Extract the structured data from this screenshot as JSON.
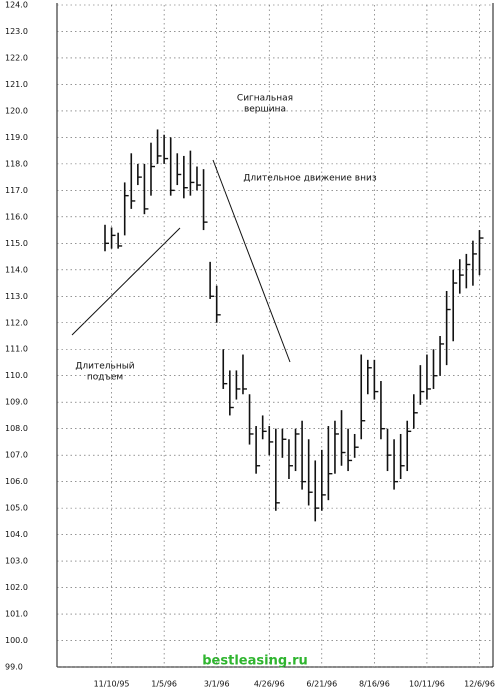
{
  "chart_data": {
    "type": "hlc",
    "color": "#111111",
    "grid": true,
    "ylim": [
      99,
      124
    ],
    "yticks": [
      {
        "value": 99,
        "label": "99.0"
      },
      {
        "value": 100,
        "label": "100.0"
      },
      {
        "value": 101,
        "label": "101.0"
      },
      {
        "value": 102,
        "label": "102.0"
      },
      {
        "value": 103,
        "label": "103.0"
      },
      {
        "value": 104,
        "label": "104.0"
      },
      {
        "value": 105,
        "label": "105.0"
      },
      {
        "value": 106,
        "label": "106.0"
      },
      {
        "value": 107,
        "label": "107.0"
      },
      {
        "value": 108,
        "label": "108.0"
      },
      {
        "value": 109,
        "label": "109.0"
      },
      {
        "value": 110,
        "label": "110.0"
      },
      {
        "value": 111,
        "label": "111.0"
      },
      {
        "value": 112,
        "label": "112.0"
      },
      {
        "value": 113,
        "label": "113.0"
      },
      {
        "value": 114,
        "label": "114.0"
      },
      {
        "value": 115,
        "label": "115.0"
      },
      {
        "value": 116,
        "label": "116.0"
      },
      {
        "value": 117,
        "label": "117.0"
      },
      {
        "value": 118,
        "label": "118.0"
      },
      {
        "value": 119,
        "label": "119.0"
      },
      {
        "value": 120,
        "label": "120.0"
      },
      {
        "value": 121,
        "label": "121.0"
      },
      {
        "value": 122,
        "label": "122.0"
      },
      {
        "value": 123,
        "label": "123.0"
      },
      {
        "value": 124,
        "label": "124.0"
      }
    ],
    "categories": [
      null,
      "11/10/95",
      null,
      null,
      null,
      null,
      null,
      null,
      null,
      "1/5/96",
      null,
      null,
      null,
      null,
      null,
      null,
      null,
      "3/1/96",
      null,
      null,
      null,
      null,
      null,
      null,
      null,
      "4/26/96",
      null,
      null,
      null,
      null,
      null,
      null,
      null,
      "6/21/96",
      null,
      null,
      null,
      null,
      null,
      null,
      null,
      "8/16/96",
      null,
      null,
      null,
      null,
      null,
      null,
      null,
      "10/11/96",
      null,
      null,
      null,
      null,
      null,
      null,
      null,
      "12/6/96"
    ],
    "high": [
      115.7,
      115.6,
      115.4,
      117.3,
      118.4,
      118.0,
      118.0,
      118.8,
      119.3,
      119.1,
      119.0,
      118.4,
      118.3,
      118.5,
      117.9,
      117.8,
      114.3,
      113.4,
      111.0,
      110.2,
      110.2,
      110.8,
      109.3,
      108.1,
      108.5,
      108.1,
      108.0,
      108.0,
      107.6,
      108.0,
      108.3,
      107.6,
      106.8,
      107.2,
      108.1,
      108.3,
      108.7,
      108.0,
      107.8,
      110.8,
      110.6,
      110.6,
      109.8,
      108.0,
      107.6,
      107.8,
      108.3,
      109.3,
      110.4,
      110.8,
      111.0,
      111.5,
      113.2,
      114.0,
      114.4,
      114.6,
      115.1,
      115.5
    ],
    "low": [
      114.7,
      114.8,
      114.8,
      115.3,
      116.3,
      117.2,
      116.1,
      116.8,
      118.0,
      118.0,
      116.8,
      117.2,
      116.7,
      116.8,
      117.0,
      115.5,
      112.9,
      112.0,
      109.5,
      108.5,
      109.1,
      109.3,
      107.4,
      106.3,
      107.6,
      107.0,
      104.9,
      106.9,
      106.1,
      106.4,
      105.7,
      105.1,
      104.5,
      104.9,
      105.3,
      106.3,
      106.6,
      106.4,
      106.9,
      107.6,
      109.3,
      109.1,
      107.6,
      106.4,
      105.7,
      106.1,
      106.4,
      108.0,
      108.9,
      109.1,
      109.5,
      110.0,
      110.4,
      111.3,
      113.1,
      113.3,
      113.4,
      113.8
    ],
    "close": [
      115.0,
      115.3,
      114.9,
      116.8,
      116.6,
      117.5,
      116.3,
      117.9,
      118.3,
      118.2,
      117.0,
      117.6,
      117.1,
      117.3,
      117.2,
      115.8,
      113.0,
      112.3,
      109.7,
      108.8,
      109.5,
      109.5,
      107.8,
      106.6,
      107.9,
      107.5,
      105.2,
      107.6,
      106.6,
      107.8,
      106.0,
      105.6,
      105.0,
      105.5,
      106.3,
      107.8,
      107.1,
      106.8,
      107.3,
      108.3,
      110.3,
      109.4,
      108.0,
      107.0,
      106.0,
      106.6,
      107.9,
      108.6,
      109.4,
      109.5,
      110.0,
      111.2,
      112.5,
      113.5,
      113.8,
      114.2,
      114.6,
      115.2
    ],
    "annotations": [
      {
        "lines": [
          "Сигнальная",
          "вершина"
        ]
      },
      {
        "lines": [
          "Длительное движение вниз"
        ]
      },
      {
        "lines": [
          "Длительный",
          "подъем"
        ]
      }
    ],
    "watermark": "bestleasing.ru"
  }
}
